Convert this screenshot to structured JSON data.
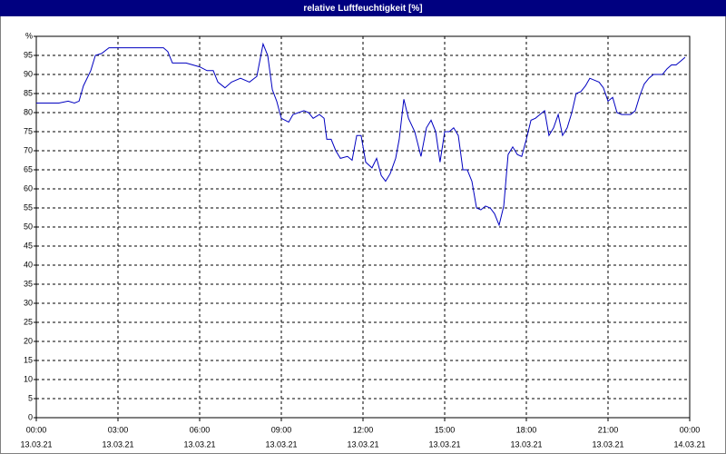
{
  "chart_data": {
    "type": "line",
    "title": "relative Luftfeuchtigkeit [%]",
    "x": [
      0,
      0.83,
      1.17,
      1.4,
      1.57,
      1.73,
      2,
      2.17,
      2.4,
      2.67,
      4.67,
      4.83,
      5,
      5.5,
      6,
      6.27,
      6.5,
      6.67,
      6.93,
      7.17,
      7.5,
      7.83,
      8.1,
      8.33,
      8.5,
      8.67,
      8.83,
      9,
      9.27,
      9.43,
      9.83,
      10,
      10.17,
      10.4,
      10.57,
      10.67,
      10.83,
      11,
      11.17,
      11.43,
      11.6,
      11.77,
      11.93,
      12.1,
      12.33,
      12.5,
      12.67,
      12.83,
      13,
      13.2,
      13.33,
      13.5,
      13.67,
      13.9,
      14.13,
      14.33,
      14.5,
      14.67,
      14.83,
      15,
      15.17,
      15.33,
      15.5,
      15.67,
      15.83,
      16,
      16.17,
      16.33,
      16.5,
      16.67,
      16.83,
      17,
      17.17,
      17.33,
      17.5,
      17.67,
      17.83,
      18,
      18.17,
      18.33,
      18.5,
      18.67,
      18.83,
      19,
      19.17,
      19.33,
      19.5,
      19.67,
      19.83,
      20,
      20.17,
      20.33,
      20.5,
      20.67,
      20.83,
      21,
      21.17,
      21.33,
      21.5,
      21.83,
      22,
      22.17,
      22.33,
      22.5,
      22.67,
      23,
      23.17,
      23.33,
      23.5,
      23.67,
      23.83
    ],
    "values": [
      82.5,
      82.5,
      83,
      82.5,
      83,
      87,
      91,
      95,
      95.5,
      97,
      97,
      96,
      93,
      93,
      92,
      91,
      91,
      88,
      86.5,
      88,
      89,
      88,
      89.5,
      98,
      95,
      86,
      83,
      78.5,
      77.5,
      79.5,
      80.5,
      80,
      78.5,
      79.5,
      78.5,
      73,
      73,
      70,
      68,
      68.5,
      67.5,
      74,
      74,
      67,
      65.5,
      68,
      63.5,
      62,
      64,
      68,
      73,
      83.5,
      78.5,
      75,
      68.5,
      76,
      78,
      75,
      67,
      75,
      75,
      76,
      74,
      65,
      65,
      62,
      55,
      54.5,
      55.5,
      55,
      53.5,
      50.5,
      55.5,
      69,
      71,
      69,
      68.5,
      73,
      78,
      78.5,
      79.5,
      80.5,
      74,
      76,
      79.5,
      74,
      76,
      80,
      85,
      85.5,
      87,
      89,
      88.5,
      88,
      86.5,
      83,
      84,
      80,
      79.5,
      79.5,
      80.5,
      84.5,
      87.5,
      89,
      90,
      90,
      91.5,
      92.5,
      92.5,
      93.5,
      94.5
    ],
    "color": "#0000c0",
    "xlim": [
      0,
      24
    ],
    "xticks": [
      {
        "value": 0,
        "label": "00:00"
      },
      {
        "value": 3,
        "label": "03:00"
      },
      {
        "value": 6,
        "label": "06:00"
      },
      {
        "value": 9,
        "label": "09:00"
      },
      {
        "value": 12,
        "label": "12:00"
      },
      {
        "value": 15,
        "label": "15:00"
      },
      {
        "value": 18,
        "label": "18:00"
      },
      {
        "value": 21,
        "label": "21:00"
      },
      {
        "value": 24,
        "label": "00:00"
      }
    ],
    "xtick_dates": [
      "13.03.21",
      "13.03.21",
      "13.03.21",
      "13.03.21",
      "13.03.21",
      "13.03.21",
      "13.03.21",
      "13.03.21",
      "14.03.21"
    ],
    "ylim": [
      0,
      100
    ],
    "yticks": [
      0,
      5,
      10,
      15,
      20,
      25,
      30,
      35,
      40,
      45,
      50,
      55,
      60,
      65,
      70,
      75,
      80,
      85,
      90,
      95,
      {
        "value": 100,
        "label": "%"
      }
    ],
    "grid": true
  }
}
